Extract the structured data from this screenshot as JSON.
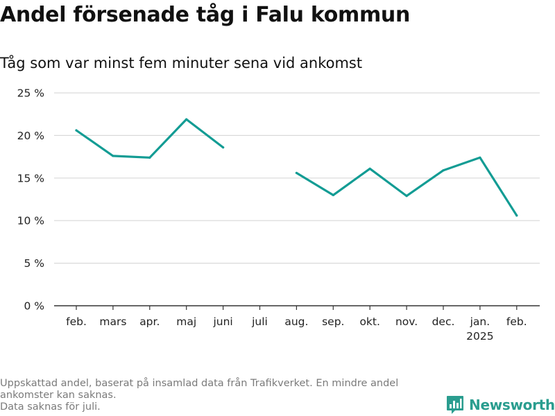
{
  "header": {
    "title": "Andel försenade tåg i Falu kommun",
    "subtitle": "Tåg som var minst fem minuter sena vid ankomst"
  },
  "footnote": {
    "lines": [
      "Uppskattad andel, baserat på insamlad data från Trafikverket. En mindre andel",
      "ankomster kan saknas.",
      "Data saknas för juli."
    ]
  },
  "brand": {
    "name": "Newsworthy",
    "logo_icon": "bar-chart-logo-icon",
    "color": "#2a9d8f"
  },
  "colors": {
    "series": "#139c94",
    "grid": "#d9d9d9",
    "axis": "#333333",
    "tick_text": "#222222"
  },
  "chart_data": {
    "type": "line",
    "categories": [
      "feb.",
      "mars",
      "apr.",
      "maj",
      "juni",
      "juli",
      "aug.",
      "sep.",
      "okt.",
      "nov.",
      "dec.",
      "jan.",
      "feb."
    ],
    "category_sublabels": [
      "",
      "",
      "",
      "",
      "",
      "",
      "",
      "",
      "",
      "",
      "",
      "2025",
      ""
    ],
    "series": [
      {
        "values": [
          20.6,
          17.6,
          17.4,
          21.9,
          18.6,
          null,
          15.6,
          13.0,
          16.1,
          12.9,
          15.9,
          17.4,
          10.6
        ]
      }
    ],
    "ylim": [
      0,
      25
    ],
    "yticks": [
      0,
      5,
      10,
      15,
      20,
      25
    ],
    "ytick_labels": [
      "0 %",
      "5 %",
      "10 %",
      "15 %",
      "20 %",
      "25 %"
    ],
    "xlabel": "",
    "ylabel": "",
    "grid": true,
    "legend": "none"
  }
}
